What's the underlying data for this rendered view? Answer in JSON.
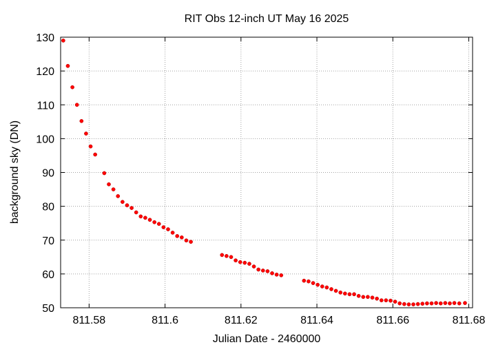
{
  "chart_data": {
    "type": "scatter",
    "title": "RIT Obs 12-inch UT May 16 2025",
    "xlabel": "Julian Date - 2460000",
    "ylabel": "background sky (DN)",
    "xlim": [
      811.5725,
      811.681
    ],
    "ylim": [
      50,
      130
    ],
    "xticks": [
      811.58,
      811.6,
      811.62,
      811.64,
      811.66,
      811.68
    ],
    "xtick_labels": [
      "811.58",
      "811.6",
      "811.62",
      "811.64",
      "811.66",
      "811.68"
    ],
    "yticks": [
      50,
      60,
      70,
      80,
      90,
      100,
      110,
      120,
      130
    ],
    "ytick_labels": [
      "50",
      "60",
      "70",
      "80",
      "90",
      "100",
      "110",
      "120",
      "130"
    ],
    "grid": true,
    "marker_color": "#ff0000",
    "series": [
      {
        "points": [
          [
            811.5732,
            129.0
          ],
          [
            811.5744,
            121.5
          ],
          [
            811.5756,
            115.2
          ],
          [
            811.5768,
            110.0
          ],
          [
            811.578,
            105.2
          ],
          [
            811.5792,
            101.5
          ],
          [
            811.5804,
            97.7
          ],
          [
            811.5816,
            95.3
          ],
          [
            811.584,
            89.8
          ],
          [
            811.5852,
            86.5
          ],
          [
            811.5864,
            85.0
          ],
          [
            811.5876,
            83.0
          ],
          [
            811.5888,
            81.3
          ],
          [
            811.59,
            80.3
          ],
          [
            811.5912,
            79.5
          ],
          [
            811.5924,
            78.2
          ],
          [
            811.5936,
            77.0
          ],
          [
            811.5948,
            76.6
          ],
          [
            811.596,
            76.0
          ],
          [
            811.5972,
            75.3
          ],
          [
            811.5984,
            74.8
          ],
          [
            811.5996,
            73.8
          ],
          [
            811.6008,
            73.2
          ],
          [
            811.602,
            72.2
          ],
          [
            811.6032,
            71.2
          ],
          [
            811.6044,
            70.8
          ],
          [
            811.6056,
            69.9
          ],
          [
            811.6068,
            69.5
          ],
          [
            811.615,
            65.6
          ],
          [
            811.6162,
            65.3
          ],
          [
            811.6174,
            65.0
          ],
          [
            811.6186,
            64.0
          ],
          [
            811.6198,
            63.5
          ],
          [
            811.621,
            63.3
          ],
          [
            811.6222,
            63.0
          ],
          [
            811.6234,
            62.2
          ],
          [
            811.6246,
            61.3
          ],
          [
            811.6258,
            61.0
          ],
          [
            811.627,
            60.8
          ],
          [
            811.6282,
            60.2
          ],
          [
            811.6294,
            59.8
          ],
          [
            811.6306,
            59.6
          ],
          [
            811.6366,
            58.0
          ],
          [
            811.6378,
            57.8
          ],
          [
            811.639,
            57.3
          ],
          [
            811.6402,
            56.8
          ],
          [
            811.6414,
            56.3
          ],
          [
            811.6426,
            56.0
          ],
          [
            811.6438,
            55.5
          ],
          [
            811.645,
            55.0
          ],
          [
            811.6462,
            54.5
          ],
          [
            811.6474,
            54.2
          ],
          [
            811.6486,
            54.0
          ],
          [
            811.6498,
            54.0
          ],
          [
            811.651,
            53.5
          ],
          [
            811.6522,
            53.2
          ],
          [
            811.6534,
            53.2
          ],
          [
            811.6546,
            53.0
          ],
          [
            811.6558,
            52.7
          ],
          [
            811.657,
            52.2
          ],
          [
            811.6582,
            52.2
          ],
          [
            811.6594,
            52.1
          ],
          [
            811.6606,
            51.8
          ],
          [
            811.6618,
            51.3
          ],
          [
            811.663,
            51.1
          ],
          [
            811.6642,
            51.0
          ],
          [
            811.6654,
            51.0
          ],
          [
            811.6666,
            51.1
          ],
          [
            811.6678,
            51.2
          ],
          [
            811.669,
            51.3
          ],
          [
            811.6702,
            51.3
          ],
          [
            811.6714,
            51.4
          ],
          [
            811.6726,
            51.3
          ],
          [
            811.6738,
            51.4
          ],
          [
            811.675,
            51.3
          ],
          [
            811.6762,
            51.4
          ],
          [
            811.6775,
            51.3
          ],
          [
            811.679,
            51.4
          ]
        ]
      }
    ]
  }
}
